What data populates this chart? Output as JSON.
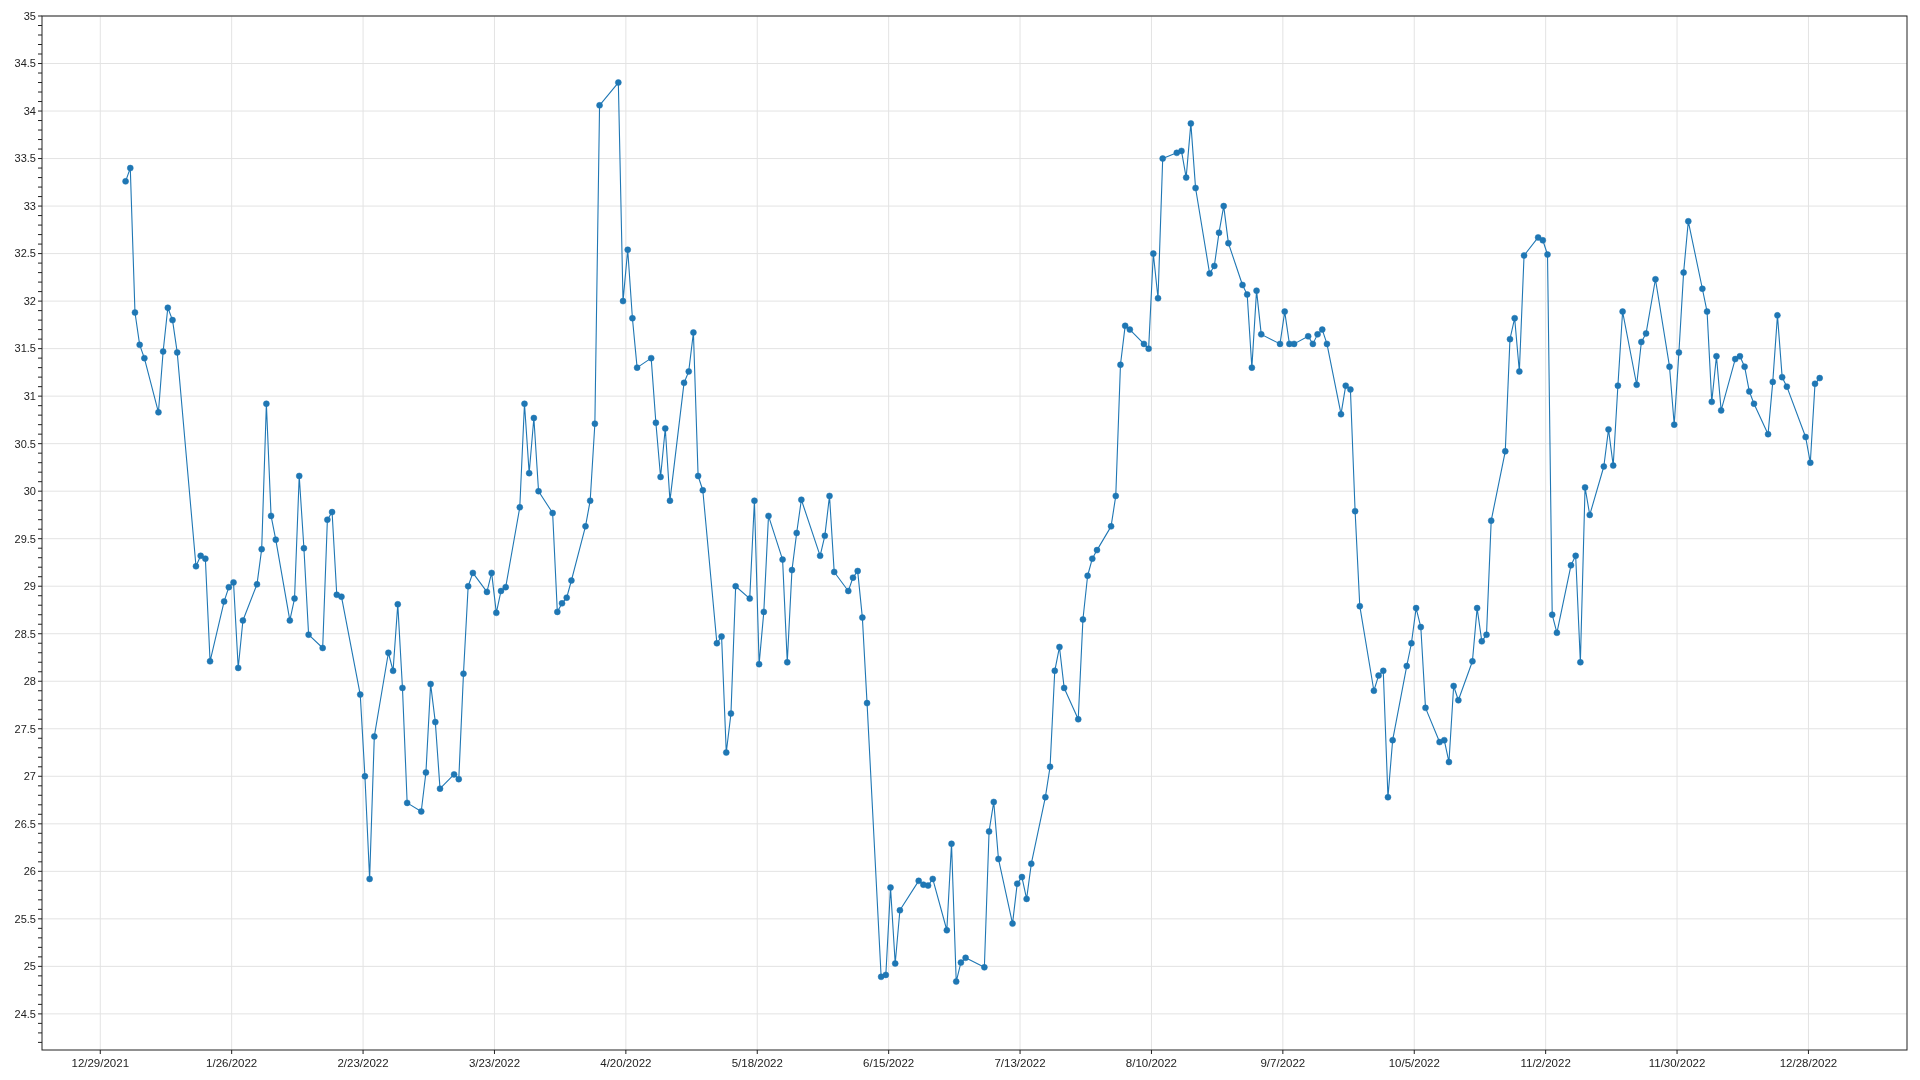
{
  "chart_data": {
    "type": "line",
    "color": "#1f77b4",
    "marker": "circle",
    "line_style": "solid",
    "grid": true,
    "xlim": [
      "2021-12-16T14:00",
      "2023-01-18"
    ],
    "xticks": [
      {
        "value": "2021-12-29",
        "label": "12/29/2021"
      },
      {
        "value": "2022-01-26",
        "label": "1/26/2022"
      },
      {
        "value": "2022-02-23",
        "label": "2/23/2022"
      },
      {
        "value": "2022-03-23",
        "label": "3/23/2022"
      },
      {
        "value": "2022-04-20",
        "label": "4/20/2022"
      },
      {
        "value": "2022-05-18",
        "label": "5/18/2022"
      },
      {
        "value": "2022-06-15",
        "label": "6/15/2022"
      },
      {
        "value": "2022-07-13",
        "label": "7/13/2022"
      },
      {
        "value": "2022-08-10",
        "label": "8/10/2022"
      },
      {
        "value": "2022-09-07",
        "label": "9/7/2022"
      },
      {
        "value": "2022-10-05",
        "label": "10/5/2022"
      },
      {
        "value": "2022-11-02",
        "label": "11/2/2022"
      },
      {
        "value": "2022-11-30",
        "label": "11/30/2022"
      },
      {
        "value": "2022-12-28",
        "label": "12/28/2022"
      }
    ],
    "ylim": [
      24.12,
      35
    ],
    "yticks": [
      {
        "value": 24.2,
        "label": null
      },
      {
        "value": 24.3,
        "label": null
      },
      {
        "value": 24.4,
        "label": null
      },
      24.5,
      {
        "value": 24.6,
        "label": null
      },
      {
        "value": 24.7,
        "label": null
      },
      {
        "value": 24.8,
        "label": null
      },
      {
        "value": 24.9,
        "label": null
      },
      25,
      {
        "value": 25.1,
        "label": null
      },
      {
        "value": 25.2,
        "label": null
      },
      {
        "value": 25.3,
        "label": null
      },
      {
        "value": 25.4,
        "label": null
      },
      25.5,
      {
        "value": 25.6,
        "label": null
      },
      {
        "value": 25.7,
        "label": null
      },
      {
        "value": 25.8,
        "label": null
      },
      {
        "value": 25.9,
        "label": null
      },
      26,
      {
        "value": 26.1,
        "label": null
      },
      {
        "value": 26.2,
        "label": null
      },
      {
        "value": 26.3,
        "label": null
      },
      {
        "value": 26.4,
        "label": null
      },
      26.5,
      {
        "value": 26.6,
        "label": null
      },
      {
        "value": 26.7,
        "label": null
      },
      {
        "value": 26.8,
        "label": null
      },
      {
        "value": 26.9,
        "label": null
      },
      27,
      {
        "value": 27.1,
        "label": null
      },
      {
        "value": 27.2,
        "label": null
      },
      {
        "value": 27.3,
        "label": null
      },
      {
        "value": 27.4,
        "label": null
      },
      27.5,
      {
        "value": 27.6,
        "label": null
      },
      {
        "value": 27.7,
        "label": null
      },
      {
        "value": 27.8,
        "label": null
      },
      {
        "value": 27.9,
        "label": null
      },
      28,
      {
        "value": 28.1,
        "label": null
      },
      {
        "value": 28.2,
        "label": null
      },
      {
        "value": 28.3,
        "label": null
      },
      {
        "value": 28.4,
        "label": null
      },
      28.5,
      {
        "value": 28.6,
        "label": null
      },
      {
        "value": 28.7,
        "label": null
      },
      {
        "value": 28.8,
        "label": null
      },
      {
        "value": 28.9,
        "label": null
      },
      29,
      {
        "value": 29.1,
        "label": null
      },
      {
        "value": 29.2,
        "label": null
      },
      {
        "value": 29.3,
        "label": null
      },
      {
        "value": 29.4,
        "label": null
      },
      29.5,
      {
        "value": 29.6,
        "label": null
      },
      {
        "value": 29.7,
        "label": null
      },
      {
        "value": 29.8,
        "label": null
      },
      {
        "value": 29.9,
        "label": null
      },
      30,
      {
        "value": 30.1,
        "label": null
      },
      {
        "value": 30.2,
        "label": null
      },
      {
        "value": 30.3,
        "label": null
      },
      {
        "value": 30.4,
        "label": null
      },
      30.5,
      {
        "value": 30.6,
        "label": null
      },
      {
        "value": 30.7,
        "label": null
      },
      {
        "value": 30.8,
        "label": null
      },
      {
        "value": 30.9,
        "label": null
      },
      31,
      {
        "value": 31.1,
        "label": null
      },
      {
        "value": 31.2,
        "label": null
      },
      {
        "value": 31.3,
        "label": null
      },
      {
        "value": 31.4,
        "label": null
      },
      31.5,
      {
        "value": 31.6,
        "label": null
      },
      {
        "value": 31.7,
        "label": null
      },
      {
        "value": 31.8,
        "label": null
      },
      {
        "value": 31.9,
        "label": null
      },
      32,
      {
        "value": 32.1,
        "label": null
      },
      {
        "value": 32.2,
        "label": null
      },
      {
        "value": 32.3,
        "label": null
      },
      {
        "value": 32.4,
        "label": null
      },
      32.5,
      {
        "value": 32.6,
        "label": null
      },
      {
        "value": 32.7,
        "label": null
      },
      {
        "value": 32.8,
        "label": null
      },
      {
        "value": 32.9,
        "label": null
      },
      33,
      {
        "value": 33.1,
        "label": null
      },
      {
        "value": 33.2,
        "label": null
      },
      {
        "value": 33.3,
        "label": null
      },
      {
        "value": 33.4,
        "label": null
      },
      33.5,
      {
        "value": 33.6,
        "label": null
      },
      {
        "value": 33.7,
        "label": null
      },
      {
        "value": 33.8,
        "label": null
      },
      {
        "value": 33.9,
        "label": null
      },
      34,
      {
        "value": 34.1,
        "label": null
      },
      {
        "value": 34.2,
        "label": null
      },
      {
        "value": 34.3,
        "label": null
      },
      {
        "value": 34.4,
        "label": null
      },
      34.5,
      {
        "value": 34.6,
        "label": null
      },
      {
        "value": 34.7,
        "label": null
      },
      {
        "value": 34.8,
        "label": null
      },
      {
        "value": 34.9,
        "label": null
      },
      35
    ],
    "x": [
      "2022-01-03T09:30",
      "2022-01-04T09:30",
      "2022-01-05T09:30",
      "2022-01-06T09:30",
      "2022-01-07T09:30",
      "2022-01-10T09:30",
      "2022-01-11T09:30",
      "2022-01-12T09:30",
      "2022-01-13T09:30",
      "2022-01-14T09:30",
      "2022-01-18T09:30",
      "2022-01-19T09:30",
      "2022-01-20T09:30",
      "2022-01-21T09:30",
      "2022-01-24T09:30",
      "2022-01-25T09:30",
      "2022-01-26T09:30",
      "2022-01-27T09:30",
      "2022-01-28T09:30",
      "2022-01-31T09:30",
      "2022-02-01T09:30",
      "2022-02-02T09:30",
      "2022-02-03T09:30",
      "2022-02-04T09:30",
      "2022-02-07T09:30",
      "2022-02-08T09:30",
      "2022-02-09T09:30",
      "2022-02-10T09:30",
      "2022-02-11T09:30",
      "2022-02-14T09:30",
      "2022-02-15T09:30",
      "2022-02-16T09:30",
      "2022-02-17T09:30",
      "2022-02-18T09:30",
      "2022-02-22T09:30",
      "2022-02-23T09:30",
      "2022-02-24T09:30",
      "2022-02-25T09:30",
      "2022-02-28T09:30",
      "2022-03-01T09:30",
      "2022-03-02T09:30",
      "2022-03-03T09:30",
      "2022-03-04T09:30",
      "2022-03-07T09:30",
      "2022-03-08T09:30",
      "2022-03-09T09:30",
      "2022-03-10T09:30",
      "2022-03-11T09:30",
      "2022-03-14T09:30",
      "2022-03-15T09:30",
      "2022-03-16T09:30",
      "2022-03-17T09:30",
      "2022-03-18T09:30",
      "2022-03-21T09:30",
      "2022-03-22T09:30",
      "2022-03-23T09:30",
      "2022-03-24T09:30",
      "2022-03-25T09:30",
      "2022-03-28T09:30",
      "2022-03-29T09:30",
      "2022-03-30T09:30",
      "2022-03-31T09:30",
      "2022-04-01T09:30",
      "2022-04-04T09:30",
      "2022-04-05T09:30",
      "2022-04-06T09:30",
      "2022-04-07T09:30",
      "2022-04-08T09:30",
      "2022-04-11T09:30",
      "2022-04-12T09:30",
      "2022-04-13T09:30",
      "2022-04-14T09:30",
      "2022-04-18T09:30",
      "2022-04-19T09:30",
      "2022-04-20T09:30",
      "2022-04-21T09:30",
      "2022-04-22T09:30",
      "2022-04-25T09:30",
      "2022-04-26T09:30",
      "2022-04-27T09:30",
      "2022-04-28T09:30",
      "2022-04-29T09:30",
      "2022-05-02T09:30",
      "2022-05-03T09:30",
      "2022-05-04T09:30",
      "2022-05-05T09:30",
      "2022-05-06T09:30",
      "2022-05-09T09:30",
      "2022-05-10T09:30",
      "2022-05-11T09:30",
      "2022-05-12T09:30",
      "2022-05-13T09:30",
      "2022-05-16T09:30",
      "2022-05-17T09:30",
      "2022-05-18T09:30",
      "2022-05-19T09:30",
      "2022-05-20T09:30",
      "2022-05-23T09:30",
      "2022-05-24T09:30",
      "2022-05-25T09:30",
      "2022-05-26T09:30",
      "2022-05-27T09:30",
      "2022-05-31T09:30",
      "2022-06-01T09:30",
      "2022-06-02T09:30",
      "2022-06-03T09:30",
      "2022-06-06T09:30",
      "2022-06-07T09:30",
      "2022-06-08T09:30",
      "2022-06-09T09:30",
      "2022-06-10T09:30",
      "2022-06-13T09:30",
      "2022-06-14T09:30",
      "2022-06-15T09:30",
      "2022-06-16T09:30",
      "2022-06-17T09:30",
      "2022-06-21T09:30",
      "2022-06-22T09:30",
      "2022-06-23T09:30",
      "2022-06-24T09:30",
      "2022-06-27T09:30",
      "2022-06-28T09:30",
      "2022-06-29T09:30",
      "2022-06-30T09:30",
      "2022-07-01T09:30",
      "2022-07-05T09:30",
      "2022-07-06T09:30",
      "2022-07-07T09:30",
      "2022-07-08T09:30",
      "2022-07-11T09:30",
      "2022-07-12T09:30",
      "2022-07-13T09:30",
      "2022-07-14T09:30",
      "2022-07-15T09:30",
      "2022-07-18T09:30",
      "2022-07-19T09:30",
      "2022-07-20T09:30",
      "2022-07-21T09:30",
      "2022-07-22T09:30",
      "2022-07-25T09:30",
      "2022-07-26T09:30",
      "2022-07-27T09:30",
      "2022-07-28T09:30",
      "2022-07-29T09:30",
      "2022-08-01T09:30",
      "2022-08-02T09:30",
      "2022-08-03T09:30",
      "2022-08-04T09:30",
      "2022-08-05T09:30",
      "2022-08-08T09:30",
      "2022-08-09T09:30",
      "2022-08-10T09:30",
      "2022-08-11T09:30",
      "2022-08-12T09:30",
      "2022-08-15T09:30",
      "2022-08-16T09:30",
      "2022-08-17T09:30",
      "2022-08-18T09:30",
      "2022-08-19T09:30",
      "2022-08-22T09:30",
      "2022-08-23T09:30",
      "2022-08-24T09:30",
      "2022-08-25T09:30",
      "2022-08-26T09:30",
      "2022-08-29T09:30",
      "2022-08-30T09:30",
      "2022-08-31T09:30",
      "2022-09-01T09:30",
      "2022-09-02T09:30",
      "2022-09-06T09:30",
      "2022-09-07T09:30",
      "2022-09-08T09:30",
      "2022-09-09T09:30",
      "2022-09-12T09:30",
      "2022-09-13T09:30",
      "2022-09-14T09:30",
      "2022-09-15T09:30",
      "2022-09-16T09:30",
      "2022-09-19T09:30",
      "2022-09-20T09:30",
      "2022-09-21T09:30",
      "2022-09-22T09:30",
      "2022-09-23T09:30",
      "2022-09-26T09:30",
      "2022-09-27T09:30",
      "2022-09-28T09:30",
      "2022-09-29T09:30",
      "2022-09-30T09:30",
      "2022-10-03T09:30",
      "2022-10-04T09:30",
      "2022-10-05T09:30",
      "2022-10-06T09:30",
      "2022-10-07T09:30",
      "2022-10-10T09:30",
      "2022-10-11T09:30",
      "2022-10-12T09:30",
      "2022-10-13T09:30",
      "2022-10-14T09:30",
      "2022-10-17T09:30",
      "2022-10-18T09:30",
      "2022-10-19T09:30",
      "2022-10-20T09:30",
      "2022-10-21T09:30",
      "2022-10-24T09:30",
      "2022-10-25T09:30",
      "2022-10-26T09:30",
      "2022-10-27T09:30",
      "2022-10-28T09:30",
      "2022-10-31T09:30",
      "2022-11-01T09:30",
      "2022-11-02T09:30",
      "2022-11-03T09:30",
      "2022-11-04T09:30",
      "2022-11-07T09:30",
      "2022-11-08T09:30",
      "2022-11-09T09:30",
      "2022-11-10T09:30",
      "2022-11-11T09:30",
      "2022-11-14T09:30",
      "2022-11-15T09:30",
      "2022-11-16T09:30",
      "2022-11-17T09:30",
      "2022-11-18T09:30",
      "2022-11-21T09:30",
      "2022-11-22T09:30",
      "2022-11-23T09:30",
      "2022-11-25T09:30",
      "2022-11-28T09:30",
      "2022-11-29T09:30",
      "2022-11-30T09:30",
      "2022-12-01T09:30",
      "2022-12-02T09:30",
      "2022-12-05T09:30",
      "2022-12-06T09:30",
      "2022-12-07T09:30",
      "2022-12-08T09:30",
      "2022-12-09T09:30",
      "2022-12-12T09:30",
      "2022-12-13T09:30",
      "2022-12-14T09:30",
      "2022-12-15T09:30",
      "2022-12-16T09:30",
      "2022-12-19T09:30",
      "2022-12-20T09:30",
      "2022-12-21T09:30",
      "2022-12-22T09:30",
      "2022-12-23T09:30",
      "2022-12-27T09:30",
      "2022-12-28T09:30",
      "2022-12-29T09:30",
      "2022-12-30T09:30"
    ],
    "values": [
      33.26,
      33.4,
      31.88,
      31.54,
      31.4,
      30.83,
      31.47,
      31.93,
      31.8,
      31.46,
      29.21,
      29.32,
      29.29,
      28.21,
      28.84,
      28.99,
      29.04,
      28.14,
      28.64,
      29.02,
      29.39,
      30.92,
      29.74,
      29.49,
      28.64,
      28.87,
      30.16,
      29.4,
      28.49,
      28.35,
      29.7,
      29.78,
      28.91,
      28.89,
      27.86,
      27.0,
      25.92,
      27.42,
      28.3,
      28.11,
      28.81,
      27.93,
      26.72,
      26.63,
      27.04,
      27.97,
      27.57,
      26.87,
      27.02,
      26.97,
      28.08,
      29.0,
      29.14,
      28.94,
      29.14,
      28.72,
      28.95,
      28.99,
      29.83,
      30.92,
      30.19,
      30.77,
      30.0,
      29.77,
      28.73,
      28.82,
      28.88,
      29.06,
      29.63,
      29.9,
      30.71,
      34.06,
      34.3,
      32.0,
      32.54,
      31.82,
      31.3,
      31.4,
      30.72,
      30.15,
      30.66,
      29.9,
      31.14,
      31.26,
      31.67,
      30.16,
      30.01,
      28.4,
      28.47,
      27.25,
      27.66,
      29.0,
      28.87,
      29.9,
      28.18,
      28.73,
      29.74,
      29.28,
      28.2,
      29.17,
      29.56,
      29.91,
      29.32,
      29.53,
      29.95,
      29.15,
      28.95,
      29.09,
      29.16,
      28.67,
      27.77,
      24.89,
      24.91,
      25.83,
      25.03,
      25.59,
      25.9,
      25.86,
      25.85,
      25.92,
      25.38,
      26.29,
      24.84,
      25.04,
      25.09,
      24.99,
      26.42,
      26.73,
      26.13,
      25.45,
      25.87,
      25.94,
      25.71,
      26.08,
      26.78,
      27.1,
      28.11,
      28.36,
      27.93,
      27.6,
      28.65,
      29.11,
      29.29,
      29.38,
      29.63,
      29.95,
      31.33,
      31.74,
      31.7,
      31.55,
      31.5,
      32.5,
      32.03,
      33.5,
      33.56,
      33.58,
      33.3,
      33.87,
      33.19,
      32.29,
      32.37,
      32.72,
      33.0,
      32.61,
      32.17,
      32.07,
      31.3,
      32.11,
      31.65,
      31.55,
      31.89,
      31.55,
      31.55,
      31.63,
      31.55,
      31.65,
      31.7,
      31.55,
      30.81,
      31.11,
      31.07,
      29.79,
      28.79,
      27.9,
      28.06,
      28.11,
      26.78,
      27.38,
      28.16,
      28.4,
      28.77,
      28.57,
      27.72,
      27.36,
      27.38,
      27.15,
      27.95,
      27.8,
      28.21,
      28.77,
      28.42,
      28.49,
      29.69,
      30.42,
      31.6,
      31.82,
      31.26,
      32.48,
      32.67,
      32.64,
      32.49,
      28.7,
      28.51,
      29.22,
      29.32,
      28.2,
      30.04,
      29.75,
      30.26,
      30.65,
      30.27,
      31.11,
      31.89,
      31.12,
      31.57,
      31.66,
      32.23,
      31.31,
      30.7,
      31.46,
      32.3,
      32.84,
      32.13,
      31.89,
      30.94,
      31.42,
      30.85,
      31.39,
      31.42,
      31.31,
      31.05,
      30.92,
      30.6,
      31.15,
      31.85,
      31.2,
      31.1,
      30.57,
      30.3,
      31.13,
      31.19
    ]
  }
}
